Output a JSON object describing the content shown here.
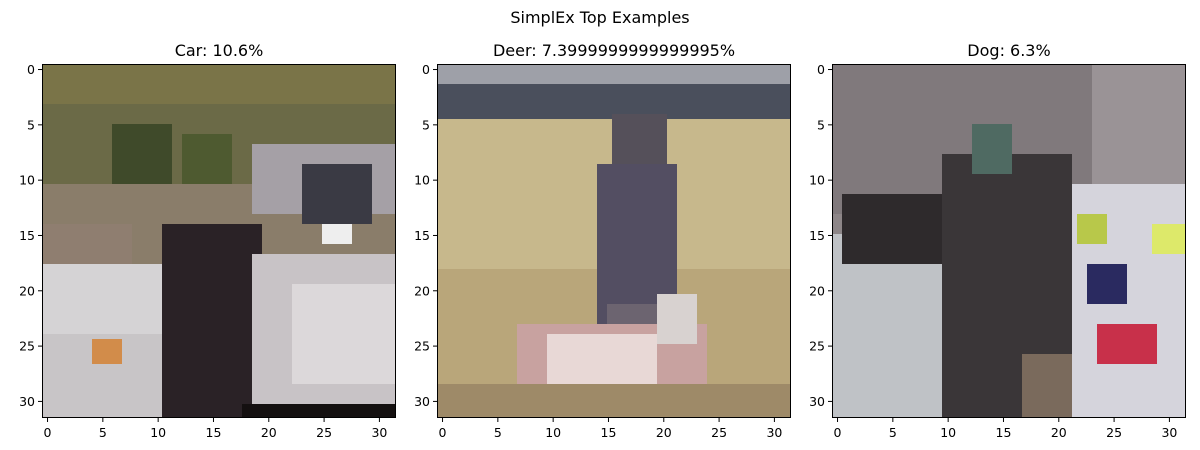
{
  "figure": {
    "suptitle": "SimplEx Top Examples"
  },
  "chart_data": [
    {
      "type": "heatmap",
      "title": "Car: 10.6%",
      "image_size": [
        32,
        32
      ],
      "xticks": [
        0,
        5,
        10,
        15,
        20,
        25,
        30
      ],
      "yticks": [
        0,
        5,
        10,
        15,
        20,
        25,
        30
      ],
      "xlim": [
        -0.5,
        31.5
      ],
      "ylim": [
        31.5,
        -0.5
      ],
      "grid": false,
      "content": "pixelated photo of a white car"
    },
    {
      "type": "heatmap",
      "title": "Deer: 7.3999999999999995%",
      "image_size": [
        32,
        32
      ],
      "xticks": [
        0,
        5,
        10,
        15,
        20,
        25,
        30
      ],
      "yticks": [
        0,
        5,
        10,
        15,
        20,
        25,
        30
      ],
      "xlim": [
        -0.5,
        31.5
      ],
      "ylim": [
        31.5,
        -0.5
      ],
      "grid": false,
      "content": "pixelated photo of a person standing with a deer in a field"
    },
    {
      "type": "heatmap",
      "title": "Dog: 6.3%",
      "image_size": [
        32,
        32
      ],
      "xticks": [
        0,
        5,
        10,
        15,
        20,
        25,
        30
      ],
      "yticks": [
        0,
        5,
        10,
        15,
        20,
        25,
        30
      ],
      "xlim": [
        -0.5,
        31.5
      ],
      "ylim": [
        31.5,
        -0.5
      ],
      "grid": false,
      "content": "pixelated photo of a dark cat or dog"
    }
  ]
}
